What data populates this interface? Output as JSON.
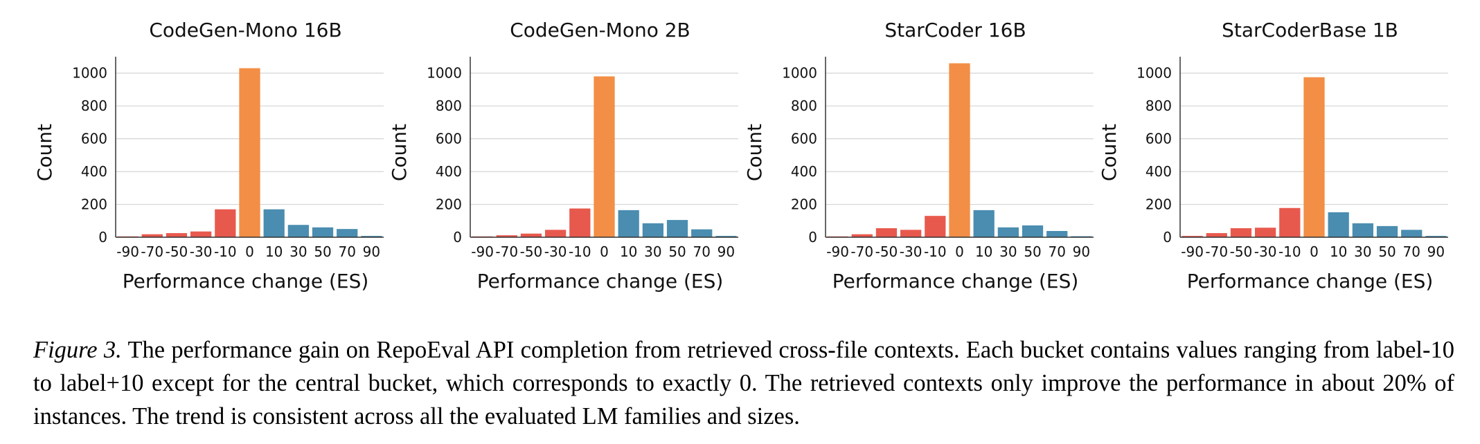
{
  "chart_data": [
    {
      "type": "bar",
      "title": "CodeGen-Mono 16B",
      "xlabel": "Performance change (ES)",
      "ylabel": "Count",
      "categories": [
        "-90",
        "-70",
        "-50",
        "-30",
        "-10",
        "0",
        "10",
        "30",
        "50",
        "70",
        "90"
      ],
      "values": [
        5,
        18,
        25,
        35,
        170,
        1030,
        170,
        75,
        60,
        50,
        8
      ],
      "ylim": [
        0,
        1100
      ],
      "yticks": [
        0,
        200,
        400,
        600,
        800,
        1000
      ],
      "grid": true
    },
    {
      "type": "bar",
      "title": "CodeGen-Mono 2B",
      "xlabel": "Performance change (ES)",
      "ylabel": "Count",
      "categories": [
        "-90",
        "-70",
        "-50",
        "-30",
        "-10",
        "0",
        "10",
        "30",
        "50",
        "70",
        "90"
      ],
      "values": [
        5,
        12,
        22,
        45,
        175,
        980,
        165,
        85,
        105,
        48,
        8
      ],
      "ylim": [
        0,
        1100
      ],
      "yticks": [
        0,
        200,
        400,
        600,
        800,
        1000
      ],
      "grid": true
    },
    {
      "type": "bar",
      "title": "StarCoder 16B",
      "xlabel": "Performance change (ES)",
      "ylabel": "Count",
      "categories": [
        "-90",
        "-70",
        "-50",
        "-30",
        "-10",
        "0",
        "10",
        "30",
        "50",
        "70",
        "90"
      ],
      "values": [
        5,
        18,
        55,
        45,
        130,
        1060,
        165,
        60,
        72,
        38,
        6
      ],
      "ylim": [
        0,
        1100
      ],
      "yticks": [
        0,
        200,
        400,
        600,
        800,
        1000
      ],
      "grid": true
    },
    {
      "type": "bar",
      "title": "StarCoderBase 1B",
      "xlabel": "Performance change (ES)",
      "ylabel": "Count",
      "categories": [
        "-90",
        "-70",
        "-50",
        "-30",
        "-10",
        "0",
        "10",
        "30",
        "50",
        "70",
        "90"
      ],
      "values": [
        8,
        25,
        55,
        58,
        178,
        975,
        152,
        85,
        68,
        45,
        8
      ],
      "ylim": [
        0,
        1100
      ],
      "yticks": [
        0,
        200,
        400,
        600,
        800,
        1000
      ],
      "grid": true
    }
  ],
  "colors": {
    "negative": "#e8594d",
    "zero": "#f28e45",
    "positive": "#4a8db0",
    "grid": "#d4d4d4"
  },
  "caption": {
    "label": "Figure 3.",
    "text": "The performance gain on RepoEval API completion from retrieved cross-file contexts. Each bucket contains values ranging from label-10 to label+10 except for the central bucket, which corresponds to exactly 0. The retrieved contexts only improve the performance in about 20% of instances. The trend is consistent across all the evaluated LM families and sizes."
  }
}
